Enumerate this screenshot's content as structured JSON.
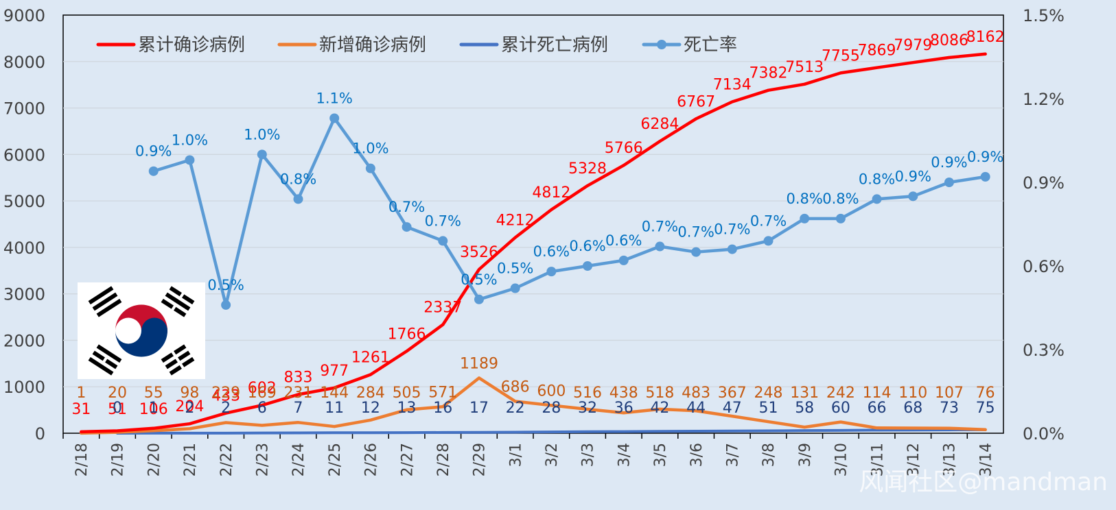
{
  "chart_data": {
    "type": "line",
    "categories": [
      "2/18",
      "2/19",
      "2/20",
      "2/21",
      "2/22",
      "2/23",
      "2/24",
      "2/25",
      "2/26",
      "2/27",
      "2/28",
      "2/29",
      "3/1",
      "3/2",
      "3/3",
      "3/4",
      "3/5",
      "3/6",
      "3/7",
      "3/8",
      "3/9",
      "3/10",
      "3/11",
      "3/12",
      "3/13",
      "3/14"
    ],
    "y_left": {
      "min": 0,
      "max": 9000,
      "ticks": [
        "0",
        "1000",
        "2000",
        "3000",
        "4000",
        "5000",
        "6000",
        "7000",
        "8000",
        "9000"
      ]
    },
    "y_right": {
      "min": 0,
      "max": 1.5,
      "ticks": [
        "0.0%",
        "0.3%",
        "0.6%",
        "0.9%",
        "1.2%",
        "1.5%"
      ]
    },
    "grid": true,
    "legend_position": "top-left",
    "series": [
      {
        "name": "累计确诊病例",
        "color": "#ff0000",
        "label_color": "#ff0000",
        "axis": "left",
        "values": [
          31,
          51,
          106,
          204,
          433,
          602,
          833,
          977,
          1261,
          1766,
          2337,
          3526,
          4212,
          4812,
          5328,
          5766,
          6284,
          6767,
          7134,
          7382,
          7513,
          7755,
          7869,
          7979,
          8086,
          8162
        ],
        "labels": [
          "31",
          "51",
          "106",
          "204",
          "433",
          "602",
          "833",
          "977",
          "1261",
          "1766",
          "2337",
          "3526",
          "4212",
          "4812",
          "5328",
          "5766",
          "6284",
          "6767",
          "7134",
          "7382",
          "7513",
          "7755",
          "7869",
          "7979",
          "8086",
          "8162"
        ]
      },
      {
        "name": "新增确诊病例",
        "color": "#ed7d31",
        "label_color": "#c55a11",
        "axis": "left",
        "values": [
          1,
          20,
          55,
          98,
          229,
          169,
          231,
          144,
          284,
          505,
          571,
          1189,
          686,
          600,
          516,
          438,
          518,
          483,
          367,
          248,
          131,
          242,
          114,
          110,
          107,
          76
        ],
        "labels": [
          "1",
          "20",
          "55",
          "98",
          "229",
          "169",
          "231",
          "144",
          "284",
          "505",
          "571",
          "1189",
          "686",
          "600",
          "516",
          "438",
          "518",
          "483",
          "367",
          "248",
          "131",
          "242",
          "114",
          "110",
          "107",
          "76"
        ]
      },
      {
        "name": "累计死亡病例",
        "color": "#4472c4",
        "label_color": "#1f3d7a",
        "axis": "left",
        "values": [
          null,
          0,
          1,
          2,
          2,
          6,
          7,
          11,
          12,
          13,
          16,
          17,
          22,
          28,
          32,
          36,
          42,
          44,
          47,
          51,
          58,
          60,
          66,
          68,
          73,
          75
        ],
        "labels": [
          null,
          "0",
          "1",
          "2",
          "2",
          "6",
          "7",
          "11",
          "12",
          "13",
          "16",
          "17",
          "22",
          "28",
          "32",
          "36",
          "42",
          "44",
          "47",
          "51",
          "58",
          "60",
          "66",
          "68",
          "73",
          "75"
        ]
      },
      {
        "name": "死亡率",
        "color": "#5b9bd5",
        "label_color": "#0070c0",
        "axis": "right",
        "values": [
          null,
          null,
          0.94,
          0.98,
          0.46,
          1.0,
          0.84,
          1.13,
          0.95,
          0.74,
          0.69,
          0.48,
          0.52,
          0.58,
          0.6,
          0.62,
          0.67,
          0.65,
          0.66,
          0.69,
          0.77,
          0.77,
          0.84,
          0.85,
          0.9,
          0.92
        ],
        "labels": [
          null,
          null,
          "0.9%",
          "1.0%",
          "0.5%",
          "1.0%",
          "0.8%",
          "1.1%",
          "1.0%",
          "0.7%",
          "0.7%",
          "0.5%",
          "0.5%",
          "0.6%",
          "0.6%",
          "0.6%",
          "0.7%",
          "0.7%",
          "0.7%",
          "0.7%",
          "0.8%",
          "0.8%",
          "0.8%",
          "0.9%",
          "0.9%",
          "0.9%"
        ]
      }
    ]
  },
  "watermark": "风闻社区@mandman"
}
